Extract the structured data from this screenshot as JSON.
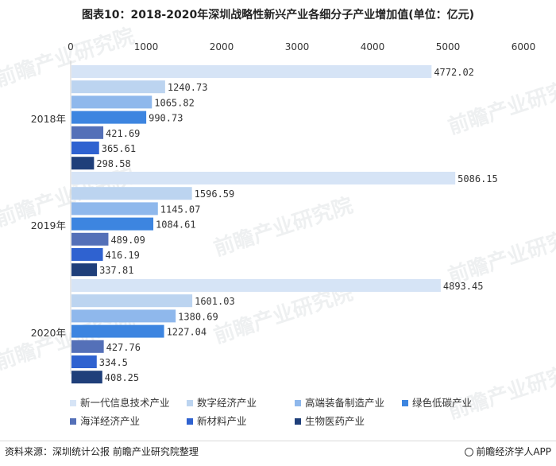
{
  "chart_data": {
    "type": "bar",
    "orientation": "horizontal",
    "title": "图表10：2018-2020年深圳战略性新兴产业各细分子产业增加值(单位：亿元)",
    "categories": [
      "2018年",
      "2019年",
      "2020年"
    ],
    "xlim": [
      0,
      6000
    ],
    "xticks": [
      0,
      1000,
      2000,
      3000,
      4000,
      5000,
      6000
    ],
    "grid": false,
    "legend_position": "bottom",
    "series": [
      {
        "name": "新一代信息技术产业",
        "color": "#d6e4f6",
        "values": [
          4772.02,
          5086.15,
          4893.45
        ],
        "labels": [
          "4772.02",
          "5086.15",
          "4893.45"
        ]
      },
      {
        "name": "数字经济产业",
        "color": "#bcd4f0",
        "values": [
          1240.73,
          1596.59,
          1601.03
        ],
        "labels": [
          "1240.73",
          "1596.59",
          "1601.03"
        ]
      },
      {
        "name": "高端装备制造产业",
        "color": "#8fb8ec",
        "values": [
          1065.82,
          1145.07,
          1380.69
        ],
        "labels": [
          "1065.82",
          "1145.07",
          "1380.69"
        ]
      },
      {
        "name": "绿色低碳产业",
        "color": "#3d85e0",
        "values": [
          990.73,
          1084.61,
          1227.04
        ],
        "labels": [
          "990.73",
          "1084.61",
          "1227.04"
        ]
      },
      {
        "name": "海洋经济产业",
        "color": "#5470b8",
        "values": [
          421.69,
          489.09,
          427.76
        ],
        "labels": [
          "421.69",
          "489.09",
          "427.76"
        ]
      },
      {
        "name": "新材料产业",
        "color": "#2f62d0",
        "values": [
          365.61,
          416.19,
          334.5
        ],
        "labels": [
          "365.61",
          "416.19",
          "334.5"
        ]
      },
      {
        "name": "生物医药产业",
        "color": "#1f3f7a",
        "values": [
          298.58,
          337.81,
          408.25
        ],
        "labels": [
          "298.58",
          "337.81",
          "408.25"
        ]
      }
    ]
  },
  "footer": {
    "source": "资料来源：深圳统计公报 前瞻产业研究院整理",
    "brand": "前瞻经济学人APP"
  },
  "watermark": "前瞻产业研究院"
}
